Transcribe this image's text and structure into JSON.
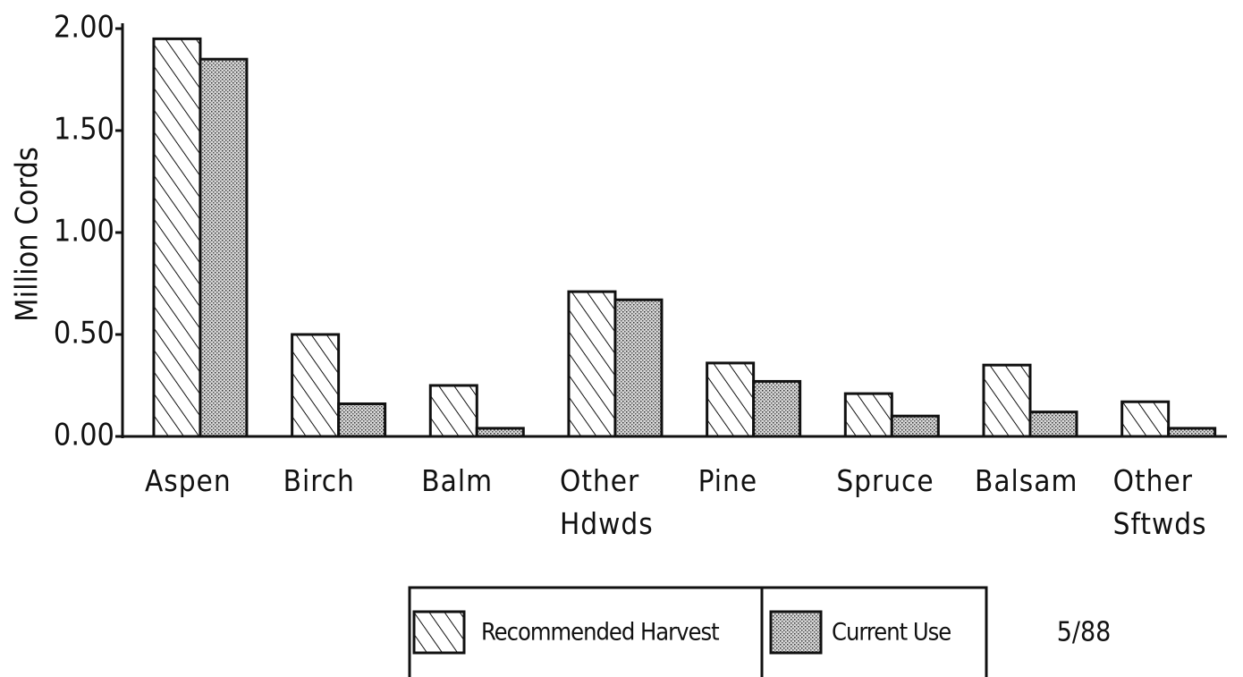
{
  "chart_data": {
    "type": "bar",
    "y_label": "Million Cords",
    "categories": [
      "Aspen",
      "Birch",
      "Balm",
      "Other\nHdwds",
      "Pine",
      "Spruce",
      "Balsam",
      "Other\nSftwds"
    ],
    "series": [
      {
        "name": "Recommended Harvest",
        "color": "#111111",
        "values": [
          1.95,
          0.5,
          0.25,
          0.71,
          0.36,
          0.21,
          0.35,
          0.17
        ]
      },
      {
        "name": "Current Use",
        "color": "#111111",
        "values": [
          1.85,
          0.16,
          0.04,
          0.67,
          0.27,
          0.1,
          0.12,
          0.04
        ]
      }
    ],
    "ylim": [
      0,
      2
    ],
    "yticks": [
      {
        "value": 0,
        "label": "0.00"
      },
      {
        "value": 0.5,
        "label": "0.50"
      },
      {
        "value": 1,
        "label": "1.00"
      },
      {
        "value": 1.5,
        "label": "1.50"
      },
      {
        "value": 2,
        "label": "2.00"
      }
    ],
    "annotation": "5/88"
  }
}
